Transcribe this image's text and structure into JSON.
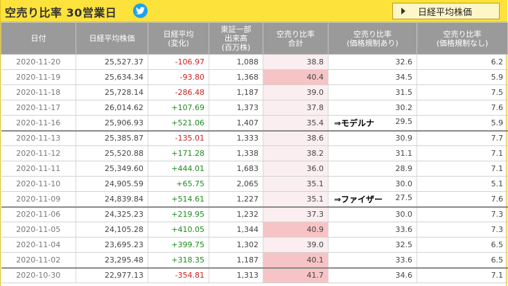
{
  "header": {
    "title": "空売り比率 30営業日",
    "twitter_icon": "twitter-bird-icon",
    "nikkei_button": "日経平均株価",
    "accent_color": "#fde23c"
  },
  "table": {
    "columns": [
      [
        "日付"
      ],
      [
        "日経平均株価"
      ],
      [
        "日経平均",
        "(変化)"
      ],
      [
        "東証一部",
        "出来高",
        "(百万株)"
      ],
      [
        "空売り比率",
        "合計"
      ],
      [
        "空売り比率",
        "(価格規制あり)"
      ],
      [
        "空売り比率",
        "(価格規制なし)"
      ]
    ],
    "rows": [
      {
        "date": "2020-11-20",
        "nikkei": "25,527.37",
        "change": "-106.97",
        "volume": "1,088",
        "total": "38.8",
        "reg": "32.6",
        "noreg": "6.2",
        "note": ""
      },
      {
        "date": "2020-11-19",
        "nikkei": "25,634.34",
        "change": "-93.80",
        "volume": "1,368",
        "total": "40.4",
        "reg": "34.5",
        "noreg": "5.9",
        "note": ""
      },
      {
        "date": "2020-11-18",
        "nikkei": "25,728.14",
        "change": "-286.48",
        "volume": "1,187",
        "total": "39.0",
        "reg": "31.5",
        "noreg": "7.5",
        "note": ""
      },
      {
        "date": "2020-11-17",
        "nikkei": "26,014.62",
        "change": "+107.69",
        "volume": "1,373",
        "total": "37.8",
        "reg": "30.2",
        "noreg": "7.6",
        "note": ""
      },
      {
        "date": "2020-11-16",
        "nikkei": "25,906.93",
        "change": "+521.06",
        "volume": "1,407",
        "total": "35.4",
        "reg": "29.5",
        "noreg": "5.9",
        "note": "⇒モデルナ"
      },
      {
        "date": "2020-11-13",
        "nikkei": "25,385.87",
        "change": "-135.01",
        "volume": "1,333",
        "total": "38.6",
        "reg": "30.9",
        "noreg": "7.7",
        "note": ""
      },
      {
        "date": "2020-11-12",
        "nikkei": "25,520.88",
        "change": "+171.28",
        "volume": "1,338",
        "total": "38.2",
        "reg": "31.1",
        "noreg": "7.1",
        "note": ""
      },
      {
        "date": "2020-11-11",
        "nikkei": "25,349.60",
        "change": "+444.01",
        "volume": "1,683",
        "total": "36.0",
        "reg": "28.9",
        "noreg": "7.1",
        "note": ""
      },
      {
        "date": "2020-11-10",
        "nikkei": "24,905.59",
        "change": "+65.75",
        "volume": "2,065",
        "total": "35.1",
        "reg": "30.0",
        "noreg": "5.1",
        "note": ""
      },
      {
        "date": "2020-11-09",
        "nikkei": "24,839.84",
        "change": "+514.61",
        "volume": "1,227",
        "total": "35.1",
        "reg": "27.5",
        "noreg": "7.6",
        "note": "⇒ファイザー"
      },
      {
        "date": "2020-11-06",
        "nikkei": "24,325.23",
        "change": "+219.95",
        "volume": "1,232",
        "total": "37.3",
        "reg": "30.0",
        "noreg": "7.3",
        "note": ""
      },
      {
        "date": "2020-11-05",
        "nikkei": "24,105.28",
        "change": "+410.05",
        "volume": "1,344",
        "total": "40.9",
        "reg": "33.6",
        "noreg": "7.3",
        "note": ""
      },
      {
        "date": "2020-11-04",
        "nikkei": "23,695.23",
        "change": "+399.75",
        "volume": "1,302",
        "total": "39.0",
        "reg": "32.5",
        "noreg": "6.5",
        "note": ""
      },
      {
        "date": "2020-11-02",
        "nikkei": "23,295.48",
        "change": "+318.35",
        "volume": "1,187",
        "total": "40.1",
        "reg": "33.6",
        "noreg": "6.5",
        "note": ""
      },
      {
        "date": "2020-10-30",
        "nikkei": "22,977.13",
        "change": "-354.81",
        "volume": "1,313",
        "total": "41.7",
        "reg": "34.6",
        "noreg": "7.1",
        "note": ""
      }
    ],
    "highlight_threshold": 40,
    "colors": {
      "positive": "#1e8a1e",
      "negative": "#cc1e1e",
      "highlight": "#f7c4c6",
      "total_bg": "#fbeef0"
    }
  }
}
